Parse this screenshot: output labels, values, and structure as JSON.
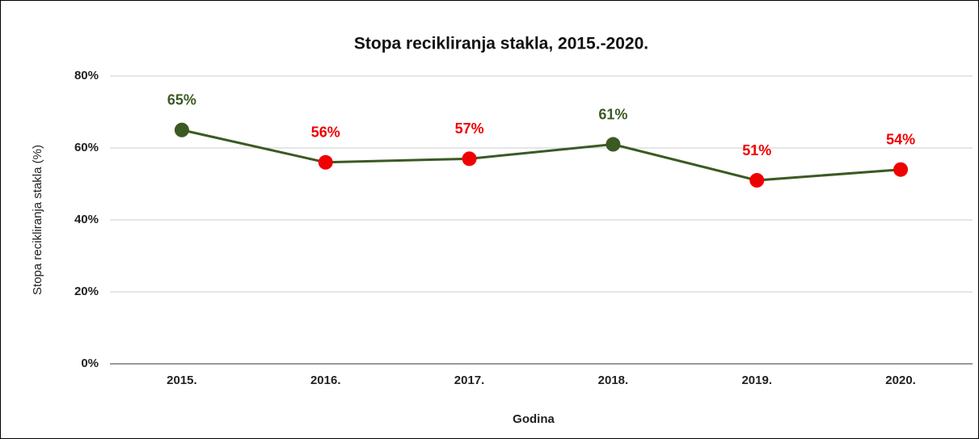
{
  "chart_data": {
    "type": "line",
    "title": "Stopa recikliranja stakla, 2015.-2020.",
    "x_label": "Godina",
    "y_label": "Stopa recikliranja stakla (%)",
    "categories": [
      "2015.",
      "2016.",
      "2017.",
      "2018.",
      "2019.",
      "2020."
    ],
    "series": [
      {
        "name": "Stopa recikliranja stakla (%)",
        "color": "#3b5a23",
        "values": [
          65,
          56,
          57,
          61,
          51,
          54
        ],
        "value_labels": [
          "65%",
          "56%",
          "57%",
          "61%",
          "51%",
          "54%"
        ],
        "marker_colors": [
          "#3b5a23",
          "#f00000",
          "#f00000",
          "#3b5a23",
          "#f00000",
          "#f00000"
        ]
      }
    ],
    "ylim": [
      0,
      80
    ],
    "yticks": [
      {
        "value": 0,
        "label": "0%"
      },
      {
        "value": 20,
        "label": "20%"
      },
      {
        "value": 40,
        "label": "40%"
      },
      {
        "value": 60,
        "label": "60%"
      },
      {
        "value": 80,
        "label": "80%"
      }
    ],
    "grid": true
  }
}
